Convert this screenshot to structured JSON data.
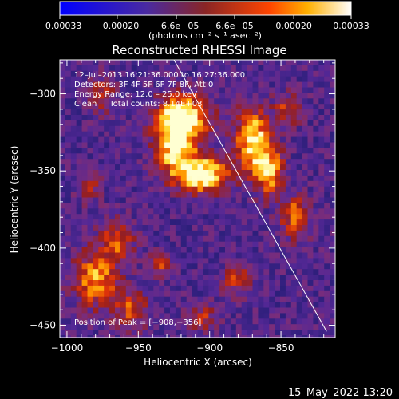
{
  "chart_data": {
    "type": "heatmap",
    "title": "Reconstructed RHESSI Image",
    "xlabel": "Heliocentric X (arcsec)",
    "ylabel": "Heliocentric Y (arcsec)",
    "xlim": [
      -1005,
      -812
    ],
    "ylim": [
      -458,
      -278
    ],
    "x_ticks": [
      -1000,
      -950,
      -900,
      -850
    ],
    "x_tick_labels": [
      "−1000",
      "−950",
      "−900",
      "−850"
    ],
    "y_ticks": [
      -300,
      -350,
      -400,
      -450
    ],
    "y_tick_labels": [
      "−300",
      "−350",
      "−400",
      "−450"
    ],
    "colorbar": {
      "min": -0.00033,
      "max": 0.00033,
      "colormap": "red-temperature",
      "tick_values": [
        -0.00033,
        -0.0002,
        -6.6e-05,
        6.6e-05,
        0.0002,
        0.00033
      ],
      "tick_labels": [
        "−0.00033",
        "−0.00020",
        "−6.6e−05",
        "6.6e−05",
        "0.00020",
        "0.00033"
      ],
      "units": "(photons cm⁻² s⁻¹ asec⁻²)"
    },
    "info_lines": [
      "12–Jul–2013 16:21:36.000 to 16:27:36.000",
      "Detectors: 3F 4F 5F 6F 7F 8F, Att 0",
      "Energy Range: 12.0 – 25.0 keV",
      "Clean     Total counts: 8.14E+03"
    ],
    "peak_label": "Position of Peak = [−908,−356]",
    "peak_position": [
      -908,
      -356
    ],
    "limb_line": {
      "x": [
        -925,
        -818
      ],
      "y": [
        -278,
        -454
      ]
    },
    "grid": false
  },
  "footer_date": "15–May–2022 13:20",
  "colors": {
    "background": "#000000",
    "limb": "#ffffff",
    "text": "#ffffff"
  }
}
